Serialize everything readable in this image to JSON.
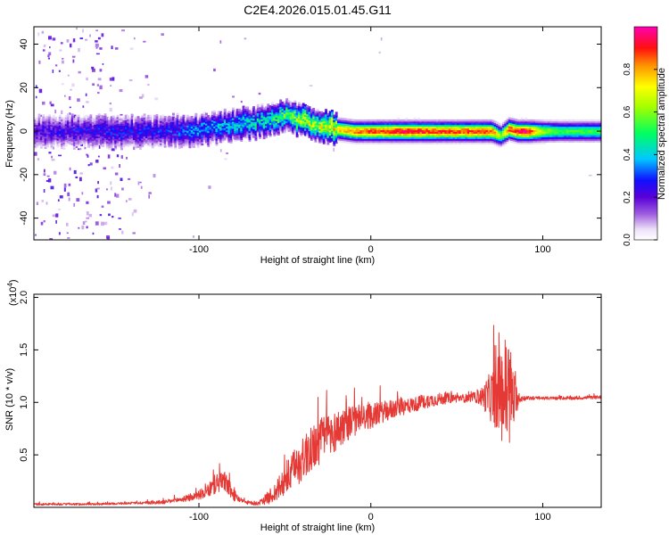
{
  "chart_data": [
    {
      "type": "heatmap",
      "title": "C2E4.2026.015.01.45.G11",
      "xlabel": "Height of straight line (km)",
      "ylabel": "Frequency (Hz)",
      "xlim": [
        -196,
        134
      ],
      "ylim": [
        -50,
        48
      ],
      "xticks": [
        -100,
        0,
        100
      ],
      "xtick_labels": [
        "-100",
        "0",
        "100"
      ],
      "yticks": [
        -40,
        -20,
        0,
        20,
        40
      ],
      "ytick_labels": [
        "-40",
        "-20",
        "0",
        "20",
        "40"
      ],
      "colorbar": {
        "label": "Normalized spectral amplitude",
        "range": [
          0,
          1
        ],
        "ticks": [
          0.0,
          0.2,
          0.4,
          0.6,
          0.8
        ],
        "tick_labels": [
          "0.0",
          "0.2",
          "0.4",
          "0.6",
          "0.8"
        ],
        "colormap": "rainbow (white-violet-blue-cyan-green-yellow-red-magenta)"
      },
      "ridge": {
        "x": [
          -196,
          -150,
          -120,
          -100,
          -80,
          -60,
          -50,
          -40,
          -30,
          -20,
          -10,
          0,
          20,
          40,
          60,
          70,
          75,
          80,
          85,
          90,
          100,
          110,
          120,
          134
        ],
        "freq": [
          0,
          0,
          0,
          1,
          3,
          5,
          7,
          5,
          3,
          1,
          0,
          0,
          0,
          0,
          0,
          0,
          -2,
          1,
          0,
          0,
          0,
          0,
          0,
          0
        ],
        "peak_amplitude": [
          0.25,
          0.3,
          0.3,
          0.4,
          0.45,
          0.5,
          0.6,
          0.7,
          0.75,
          0.8,
          0.85,
          0.9,
          0.95,
          0.9,
          0.9,
          0.9,
          0.6,
          0.9,
          0.95,
          1.0,
          0.65,
          0.55,
          0.55,
          0.55
        ]
      }
    },
    {
      "type": "line",
      "xlabel": "Height of straight line (km)",
      "ylabel": "SNR (10 * v/v)",
      "y_multiplier": "(x10^4)",
      "xlim": [
        -196,
        134
      ],
      "ylim": [
        0,
        2.03
      ],
      "xticks": [
        -100,
        0,
        100
      ],
      "xtick_labels": [
        "-100",
        "0",
        "100"
      ],
      "yticks": [
        0.5,
        1.0,
        1.5,
        2.0
      ],
      "ytick_labels": [
        "0.5",
        "1.0",
        "1.5",
        "2.0"
      ],
      "series": [
        {
          "name": "SNR",
          "color": "#e53935",
          "x": [
            -196,
            -180,
            -160,
            -140,
            -120,
            -105,
            -95,
            -90,
            -85,
            -80,
            -75,
            -70,
            -65,
            -60,
            -55,
            -50,
            -45,
            -40,
            -35,
            -30,
            -25,
            -20,
            -15,
            -10,
            -5,
            0,
            5,
            10,
            15,
            20,
            25,
            30,
            35,
            40,
            45,
            50,
            55,
            60,
            65,
            70,
            75,
            78,
            80,
            82,
            84,
            86,
            90,
            100,
            110,
            120,
            134
          ],
          "y": [
            0.03,
            0.03,
            0.03,
            0.04,
            0.05,
            0.09,
            0.15,
            0.23,
            0.25,
            0.12,
            0.06,
            0.04,
            0.04,
            0.09,
            0.15,
            0.25,
            0.35,
            0.45,
            0.55,
            0.62,
            0.7,
            0.72,
            0.8,
            0.82,
            0.85,
            0.87,
            0.9,
            0.92,
            0.95,
            0.96,
            0.98,
            1.0,
            1.02,
            1.03,
            1.04,
            1.04,
            1.04,
            1.05,
            1.05,
            1.06,
            1.08,
            1.1,
            1.1,
            1.05,
            1.02,
            1.04,
            1.04,
            1.04,
            1.04,
            1.04,
            1.05
          ],
          "noise_amplitude": [
            0.01,
            0.01,
            0.01,
            0.01,
            0.02,
            0.03,
            0.06,
            0.1,
            0.1,
            0.06,
            0.02,
            0.02,
            0.02,
            0.06,
            0.1,
            0.15,
            0.18,
            0.2,
            0.22,
            0.22,
            0.2,
            0.2,
            0.18,
            0.15,
            0.14,
            0.12,
            0.1,
            0.1,
            0.09,
            0.08,
            0.07,
            0.07,
            0.06,
            0.06,
            0.05,
            0.04,
            0.04,
            0.04,
            0.1,
            0.25,
            0.4,
            0.55,
            0.6,
            0.4,
            0.2,
            0.05,
            0.02,
            0.015,
            0.015,
            0.015,
            0.015
          ]
        }
      ]
    }
  ]
}
